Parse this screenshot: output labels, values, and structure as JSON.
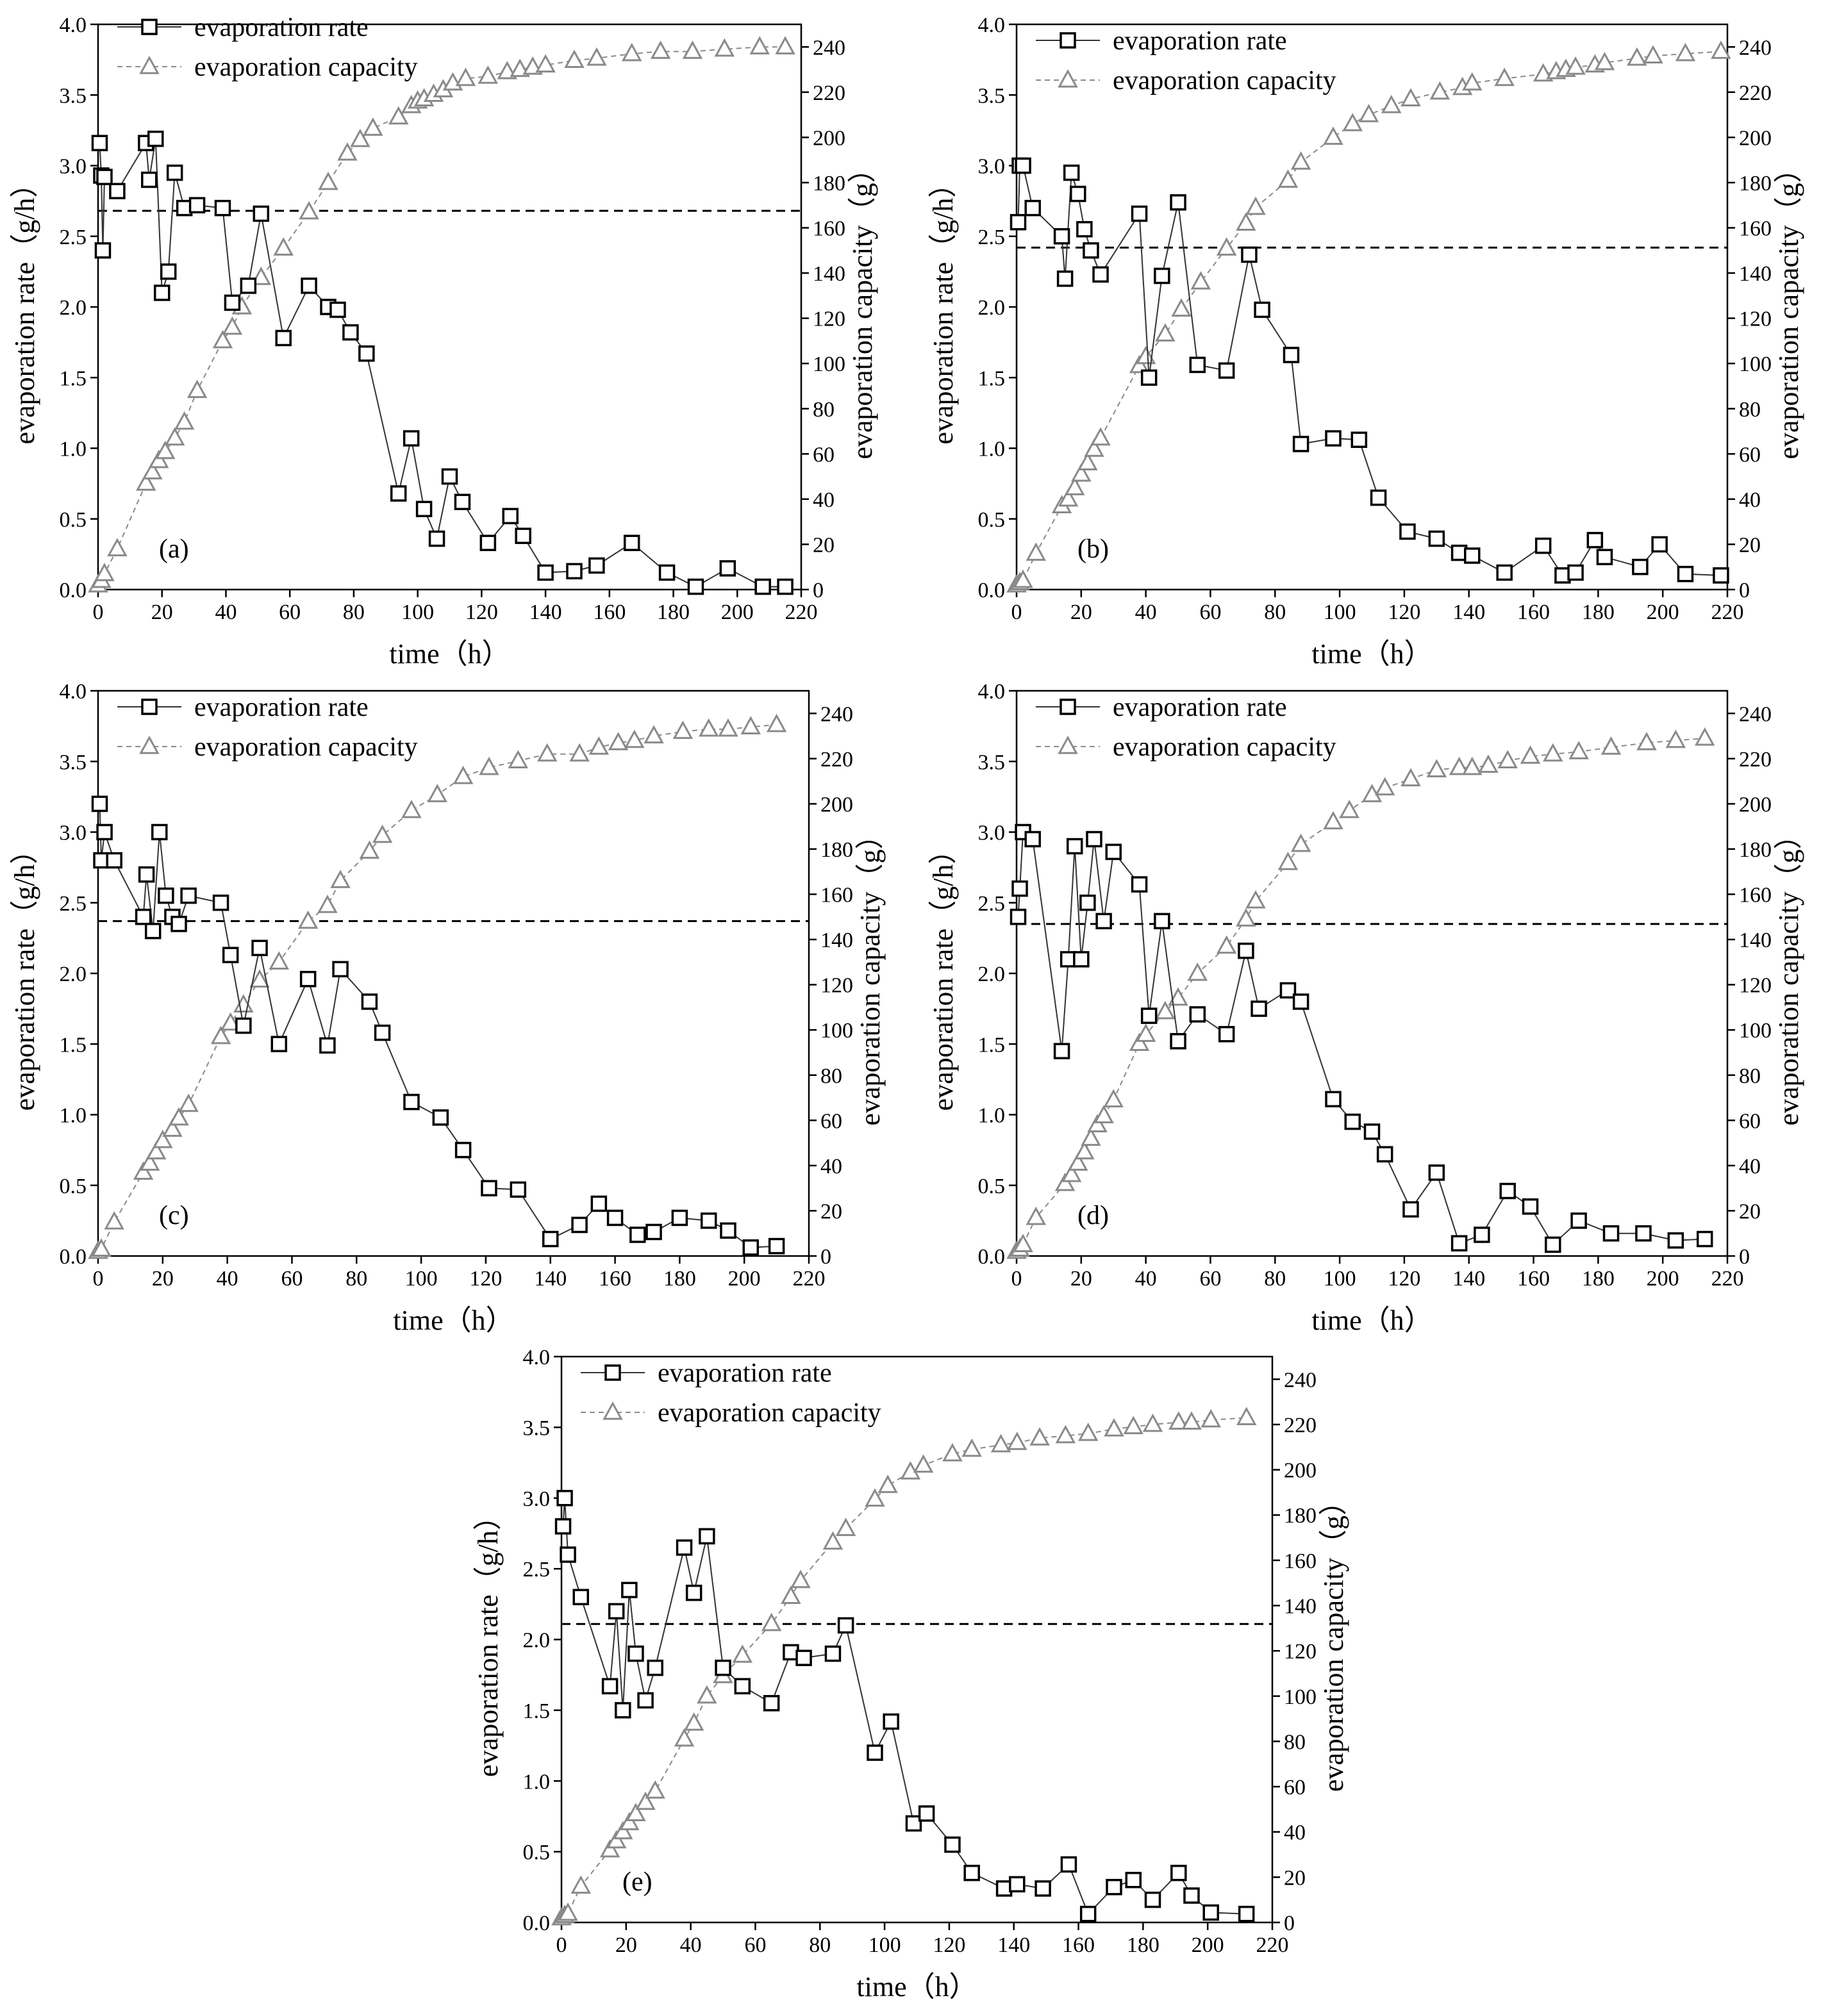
{
  "figure_title": "",
  "chart_data": [
    {
      "panel": "(a)",
      "type": "line",
      "xlabel": "time（h）",
      "ylabel": "evaporation rate（g/h）",
      "y2label": "evaporation capacity（g）",
      "xlim": [
        0,
        220
      ],
      "ylim": [
        0,
        4.0
      ],
      "y2lim": [
        0,
        250
      ],
      "xticks": [
        "0",
        "20",
        "40",
        "60",
        "80",
        "100",
        "120",
        "140",
        "160",
        "180",
        "200",
        "220"
      ],
      "yticks": [
        "0.0",
        "0.5",
        "1.0",
        "1.5",
        "2.0",
        "2.5",
        "3.0",
        "3.5",
        "4.0"
      ],
      "y2ticks": [
        "0",
        "20",
        "40",
        "60",
        "80",
        "100",
        "120",
        "140",
        "160",
        "180",
        "200",
        "220",
        "240"
      ],
      "legend": [
        "evaporation rate",
        "evaporation capacity"
      ],
      "reference_line": 2.68,
      "rate_x": [
        0.5,
        1,
        1.5,
        2,
        6,
        15,
        16,
        18,
        20,
        22,
        24,
        27,
        31,
        39,
        42,
        47,
        51,
        58,
        66,
        72,
        75,
        79,
        84,
        94,
        98,
        102,
        106,
        110,
        114,
        122,
        129,
        133,
        140,
        149,
        156,
        167,
        178,
        187,
        197,
        208,
        215
      ],
      "rate_y": [
        3.16,
        2.93,
        2.4,
        2.92,
        2.82,
        3.16,
        2.9,
        3.19,
        2.1,
        2.25,
        2.95,
        2.7,
        2.72,
        2.7,
        2.03,
        2.15,
        2.66,
        1.78,
        2.15,
        2.0,
        1.98,
        1.82,
        1.67,
        0.68,
        1.07,
        0.57,
        0.36,
        0.8,
        0.62,
        0.33,
        0.52,
        0.38,
        0.12,
        0.13,
        0.17,
        0.33,
        0.12,
        0.02,
        0.15,
        0.02,
        0.02
      ],
      "capacity_x": [
        0,
        1,
        2,
        6,
        15,
        17,
        19,
        21,
        24,
        27,
        31,
        39,
        42,
        45,
        51,
        58,
        66,
        72,
        78,
        82,
        86,
        94,
        98,
        100,
        102,
        105,
        108,
        111,
        115,
        122,
        128,
        132,
        136,
        140,
        149,
        156,
        167,
        176,
        186,
        196,
        207,
        215
      ],
      "capacity_y": [
        2,
        4,
        7,
        18,
        47,
        52,
        57,
        61,
        67,
        74,
        88,
        110,
        116,
        125,
        138,
        151,
        167,
        180,
        193,
        199,
        204,
        209,
        214,
        216,
        217,
        219,
        221,
        224,
        226,
        227,
        229,
        230,
        231,
        232,
        234,
        235,
        237,
        238,
        238,
        239,
        240,
        240
      ]
    },
    {
      "panel": "(b)",
      "type": "line",
      "xlabel": "time（h）",
      "ylabel": "evaporation rate（g/h）",
      "y2label": "evaporation capacity（g）",
      "xlim": [
        0,
        220
      ],
      "ylim": [
        0,
        4.0
      ],
      "y2lim": [
        0,
        250
      ],
      "xticks": [
        "0",
        "20",
        "40",
        "60",
        "80",
        "100",
        "120",
        "140",
        "160",
        "180",
        "200",
        "220"
      ],
      "yticks": [
        "0.0",
        "0.5",
        "1.0",
        "1.5",
        "2.0",
        "2.5",
        "3.0",
        "3.5",
        "4.0"
      ],
      "y2ticks": [
        "0",
        "20",
        "40",
        "60",
        "80",
        "100",
        "120",
        "140",
        "160",
        "180",
        "200",
        "220",
        "240"
      ],
      "legend": [
        "evaporation rate",
        "evaporation capacity"
      ],
      "reference_line": 2.42,
      "rate_x": [
        0.5,
        1,
        2,
        5,
        14,
        15,
        17,
        19,
        21,
        23,
        26,
        38,
        41,
        45,
        50,
        56,
        65,
        72,
        76,
        85,
        88,
        98,
        106,
        112,
        121,
        130,
        137,
        141,
        151,
        163,
        169,
        173,
        179,
        182,
        193,
        199,
        207,
        218
      ],
      "rate_y": [
        2.6,
        3.0,
        3.0,
        2.7,
        2.5,
        2.2,
        2.95,
        2.8,
        2.55,
        2.4,
        2.23,
        2.66,
        1.5,
        2.22,
        2.74,
        1.59,
        1.55,
        2.37,
        1.98,
        1.66,
        1.03,
        1.07,
        1.06,
        0.65,
        0.41,
        0.36,
        0.26,
        0.24,
        0.12,
        0.31,
        0.1,
        0.12,
        0.35,
        0.23,
        0.16,
        0.32,
        0.11,
        0.1
      ],
      "capacity_x": [
        0,
        1,
        2,
        6,
        14,
        16,
        18,
        20,
        22,
        24,
        26,
        38,
        40,
        46,
        51,
        57,
        65,
        71,
        74,
        84,
        88,
        98,
        104,
        109,
        116,
        122,
        131,
        138,
        141,
        151,
        163,
        167,
        170,
        173,
        179,
        182,
        192,
        197,
        207,
        218
      ],
      "capacity_y": [
        2,
        3,
        4,
        16,
        37,
        40,
        45,
        51,
        56,
        62,
        67,
        99,
        103,
        113,
        124,
        136,
        151,
        162,
        169,
        181,
        189,
        200,
        206,
        210,
        214,
        217,
        220,
        222,
        224,
        226,
        228,
        229,
        230,
        231,
        232,
        233,
        235,
        236,
        237,
        238
      ]
    },
    {
      "panel": "(c)",
      "type": "line",
      "xlabel": "time（h）",
      "ylabel": "evaporation rate（g/h）",
      "y2label": "evaporation capacity（g）",
      "xlim": [
        0,
        220
      ],
      "ylim": [
        0,
        4.0
      ],
      "y2lim": [
        0,
        250
      ],
      "xticks": [
        "0",
        "20",
        "40",
        "60",
        "80",
        "100",
        "120",
        "140",
        "160",
        "180",
        "200",
        "220"
      ],
      "yticks": [
        "0.0",
        "0.5",
        "1.0",
        "1.5",
        "2.0",
        "2.5",
        "3.0",
        "3.5",
        "4.0"
      ],
      "y2ticks": [
        "0",
        "20",
        "40",
        "60",
        "80",
        "100",
        "120",
        "140",
        "160",
        "180",
        "200",
        "220",
        "240"
      ],
      "legend": [
        "evaporation rate",
        "evaporation capacity"
      ],
      "reference_line": 2.37,
      "rate_x": [
        0.5,
        1,
        2,
        5,
        14,
        15,
        17,
        19,
        21,
        23,
        25,
        28,
        38,
        41,
        45,
        50,
        56,
        65,
        71,
        75,
        84,
        88,
        97,
        106,
        113,
        121,
        130,
        140,
        149,
        155,
        160,
        167,
        172,
        180,
        189,
        195,
        202,
        210
      ],
      "rate_y": [
        3.2,
        2.8,
        3.0,
        2.8,
        2.4,
        2.7,
        2.3,
        3.0,
        2.55,
        2.4,
        2.35,
        2.55,
        2.5,
        2.13,
        1.63,
        2.18,
        1.5,
        1.96,
        1.49,
        2.03,
        1.8,
        1.58,
        1.09,
        0.98,
        0.75,
        0.48,
        0.47,
        0.12,
        0.22,
        0.37,
        0.27,
        0.15,
        0.17,
        0.27,
        0.25,
        0.18,
        0.06,
        0.07
      ],
      "capacity_x": [
        0,
        1,
        5,
        14,
        16,
        18,
        20,
        23,
        25,
        28,
        38,
        41,
        45,
        50,
        56,
        65,
        71,
        75,
        84,
        88,
        97,
        105,
        113,
        121,
        130,
        139,
        149,
        155,
        161,
        166,
        172,
        181,
        189,
        195,
        202,
        210
      ],
      "capacity_y": [
        2,
        3,
        15,
        37,
        41,
        46,
        51,
        56,
        61,
        67,
        97,
        103,
        111,
        122,
        130,
        148,
        155,
        166,
        179,
        186,
        197,
        204,
        212,
        216,
        219,
        222,
        222,
        225,
        227,
        228,
        230,
        232,
        233,
        233,
        234,
        235
      ]
    },
    {
      "panel": "(d)",
      "type": "line",
      "xlabel": "time（h）",
      "ylabel": "evaporation rate（g/h）",
      "y2label": "evaporation capacity（g）",
      "xlim": [
        0,
        220
      ],
      "ylim": [
        0,
        4.0
      ],
      "y2lim": [
        0,
        250
      ],
      "xticks": [
        "0",
        "20",
        "40",
        "60",
        "80",
        "100",
        "120",
        "140",
        "160",
        "180",
        "200",
        "220"
      ],
      "yticks": [
        "0.0",
        "0.5",
        "1.0",
        "1.5",
        "2.0",
        "2.5",
        "3.0",
        "3.5",
        "4.0"
      ],
      "y2ticks": [
        "0",
        "20",
        "40",
        "60",
        "80",
        "100",
        "120",
        "140",
        "160",
        "180",
        "200",
        "220",
        "240"
      ],
      "legend": [
        "evaporation rate",
        "evaporation capacity"
      ],
      "reference_line": 2.35,
      "rate_x": [
        0.5,
        1,
        2,
        5,
        14,
        16,
        18,
        20,
        22,
        24,
        27,
        30,
        38,
        41,
        45,
        50,
        56,
        65,
        71,
        75,
        84,
        88,
        98,
        104,
        110,
        114,
        122,
        130,
        137,
        144,
        152,
        159,
        166,
        174,
        184,
        194,
        204,
        213
      ],
      "rate_y": [
        2.4,
        2.6,
        3.0,
        2.95,
        1.45,
        2.1,
        2.9,
        2.1,
        2.5,
        2.95,
        2.37,
        2.86,
        2.63,
        1.7,
        2.37,
        1.52,
        1.71,
        1.57,
        2.16,
        1.75,
        1.88,
        1.8,
        1.11,
        0.95,
        0.88,
        0.72,
        0.33,
        0.59,
        0.09,
        0.15,
        0.46,
        0.35,
        0.08,
        0.25,
        0.16,
        0.16,
        0.11,
        0.12
      ],
      "capacity_x": [
        0,
        1,
        2,
        6,
        15,
        17,
        19,
        21,
        23,
        25,
        27,
        30,
        38,
        40,
        46,
        50,
        56,
        65,
        71,
        74,
        84,
        88,
        98,
        103,
        110,
        114,
        122,
        130,
        137,
        141,
        146,
        152,
        159,
        166,
        174,
        184,
        195,
        204,
        213
      ],
      "capacity_y": [
        2,
        3,
        5,
        17,
        32,
        36,
        41,
        46,
        52,
        58,
        62,
        69,
        94,
        98,
        108,
        114,
        125,
        137,
        149,
        157,
        174,
        182,
        192,
        197,
        204,
        207,
        211,
        215,
        216,
        216,
        217,
        219,
        221,
        222,
        223,
        225,
        227,
        228,
        229
      ]
    },
    {
      "panel": "(e)",
      "type": "line",
      "xlabel": "time（h）",
      "ylabel": "evaporation rate（g/h）",
      "y2label": "evaporation capacity（g）",
      "xlim": [
        0,
        220
      ],
      "ylim": [
        0,
        4.0
      ],
      "y2lim": [
        0,
        250
      ],
      "xticks": [
        "0",
        "20",
        "40",
        "60",
        "80",
        "100",
        "120",
        "140",
        "160",
        "180",
        "200",
        "220"
      ],
      "yticks": [
        "0.0",
        "0.5",
        "1.0",
        "1.5",
        "2.0",
        "2.5",
        "3.0",
        "3.5",
        "4.0"
      ],
      "y2ticks": [
        "0",
        "20",
        "40",
        "60",
        "80",
        "100",
        "120",
        "140",
        "160",
        "180",
        "200",
        "220",
        "240"
      ],
      "legend": [
        "evaporation rate",
        "evaporation capacity"
      ],
      "reference_line": 2.11,
      "rate_x": [
        0.5,
        1,
        2,
        6,
        15,
        17,
        19,
        21,
        23,
        26,
        29,
        38,
        41,
        45,
        50,
        56,
        65,
        71,
        75,
        84,
        88,
        97,
        102,
        109,
        113,
        121,
        127,
        137,
        141,
        149,
        157,
        163,
        171,
        177,
        183,
        191,
        195,
        201,
        212
      ],
      "rate_y": [
        2.8,
        3.0,
        2.6,
        2.3,
        1.67,
        2.2,
        1.5,
        2.35,
        1.9,
        1.57,
        1.8,
        2.65,
        2.33,
        2.73,
        1.8,
        1.67,
        1.55,
        1.91,
        1.87,
        1.9,
        2.1,
        1.2,
        1.42,
        0.7,
        0.77,
        0.55,
        0.35,
        0.24,
        0.27,
        0.24,
        0.41,
        0.06,
        0.25,
        0.3,
        0.16,
        0.35,
        0.19,
        0.07,
        0.06
      ],
      "capacity_x": [
        0,
        1,
        2,
        6,
        15,
        17,
        19,
        21,
        23,
        26,
        29,
        38,
        41,
        45,
        50,
        56,
        65,
        71,
        74,
        84,
        88,
        97,
        101,
        108,
        112,
        121,
        127,
        136,
        141,
        148,
        156,
        163,
        171,
        177,
        183,
        191,
        195,
        201,
        212
      ],
      "capacity_y": [
        2,
        3,
        4,
        16,
        32,
        36,
        40,
        44,
        48,
        53,
        58,
        81,
        88,
        100,
        109,
        118,
        132,
        144,
        151,
        168,
        174,
        187,
        193,
        199,
        202,
        207,
        209,
        211,
        212,
        214,
        215,
        216,
        218,
        219,
        220,
        221,
        221,
        222,
        223
      ]
    }
  ]
}
